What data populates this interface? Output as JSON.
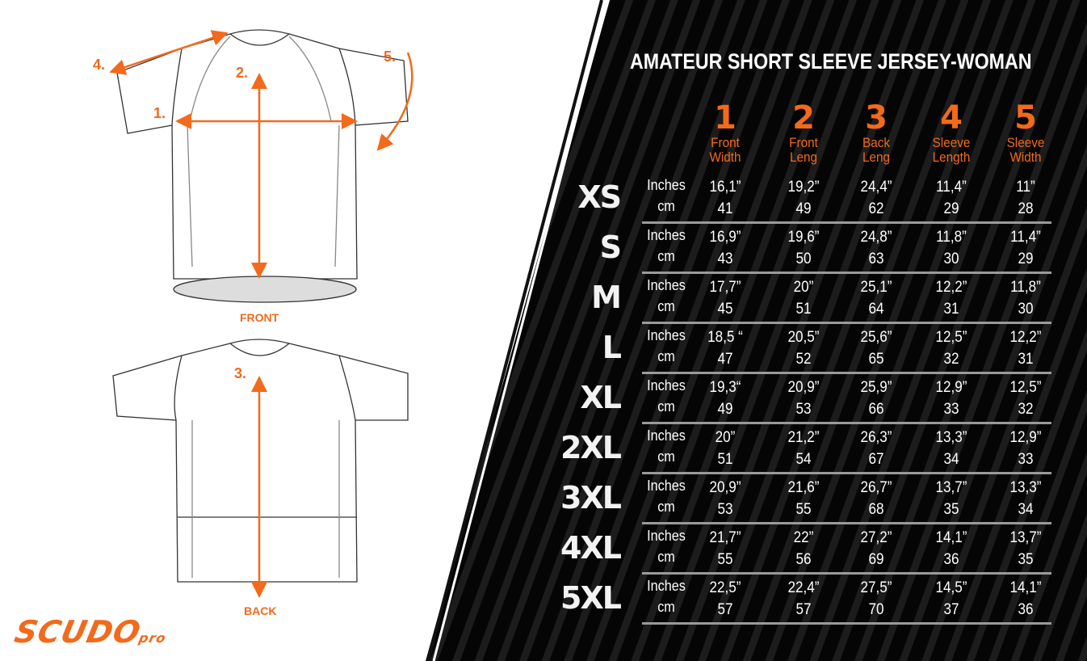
{
  "title": "AMATEUR SHORT SLEEVE JERSEY-WOMAN",
  "colors": {
    "accent": "#f26a1b",
    "panel": "#0a0a0a",
    "text": "#ffffff"
  },
  "diagram": {
    "front_label": "FRONT",
    "back_label": "BACK",
    "markers": {
      "m1": "1.",
      "m2": "2.",
      "m3": "3.",
      "m4": "4.",
      "m5": "5."
    }
  },
  "logo": {
    "name": "SCUDO",
    "suffix": "pro"
  },
  "columns": [
    {
      "num": "1",
      "line1": "Front",
      "line2": "Width"
    },
    {
      "num": "2",
      "line1": "Front",
      "line2": "Leng"
    },
    {
      "num": "3",
      "line1": "Back",
      "line2": "Leng"
    },
    {
      "num": "4",
      "line1": "Sleeve",
      "line2": "Length"
    },
    {
      "num": "5",
      "line1": "Sleeve",
      "line2": "Width"
    }
  ],
  "units": {
    "inches": "Inches",
    "cm": "cm"
  },
  "rows": [
    {
      "size": "XS",
      "inches": [
        "16,1”",
        "19,2”",
        "24,4”",
        "11,4”",
        "11”"
      ],
      "cm": [
        "41",
        "49",
        "62",
        "29",
        "28"
      ]
    },
    {
      "size": "S",
      "inches": [
        "16,9”",
        "19,6”",
        "24,8”",
        "11,8”",
        "11,4”"
      ],
      "cm": [
        "43",
        "50",
        "63",
        "30",
        "29"
      ]
    },
    {
      "size": "M",
      "inches": [
        "17,7”",
        "20”",
        "25,1”",
        "12,2”",
        "11,8”"
      ],
      "cm": [
        "45",
        "51",
        "64",
        "31",
        "30"
      ]
    },
    {
      "size": "L",
      "inches": [
        "18,5 “",
        "20,5”",
        "25,6”",
        "12,5”",
        "12,2”"
      ],
      "cm": [
        "47",
        "52",
        "65",
        "32",
        "31"
      ]
    },
    {
      "size": "XL",
      "inches": [
        "19,3“",
        "20,9”",
        "25,9”",
        "12,9”",
        "12,5”"
      ],
      "cm": [
        "49",
        "53",
        "66",
        "33",
        "32"
      ]
    },
    {
      "size": "2XL",
      "inches": [
        "20”",
        "21,2”",
        "26,3”",
        "13,3”",
        "12,9”"
      ],
      "cm": [
        "51",
        "54",
        "67",
        "34",
        "33"
      ]
    },
    {
      "size": "3XL",
      "inches": [
        "20,9”",
        "21,6”",
        "26,7”",
        "13,7”",
        "13,3”"
      ],
      "cm": [
        "53",
        "55",
        "68",
        "35",
        "34"
      ]
    },
    {
      "size": "4XL",
      "inches": [
        "21,7”",
        "22”",
        "27,2”",
        "14,1”",
        "13,7”"
      ],
      "cm": [
        "55",
        "56",
        "69",
        "36",
        "35"
      ]
    },
    {
      "size": "5XL",
      "inches": [
        "22,5”",
        "22,4”",
        "27,5”",
        "14,5”",
        "14,1”"
      ],
      "cm": [
        "57",
        "57",
        "70",
        "37",
        "36"
      ]
    }
  ]
}
